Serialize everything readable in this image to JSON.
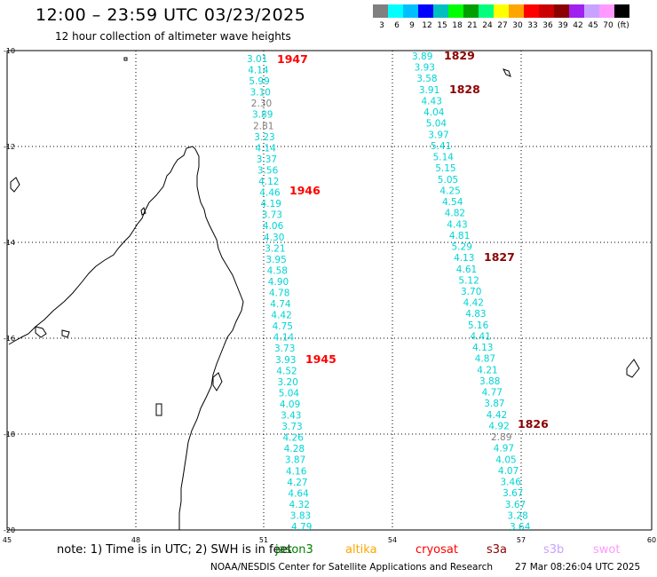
{
  "title": "12:00 – 23:59 UTC 03/23/2025",
  "subtitle": "12 hour collection of altimeter wave heights",
  "legend": {
    "labels": [
      "3",
      "6",
      "9",
      "12",
      "15",
      "18",
      "21",
      "24",
      "27",
      "30",
      "33",
      "36",
      "39",
      "42",
      "45",
      "70",
      "(ft)"
    ],
    "colors": [
      "#808080",
      "#00ffff",
      "#00bfff",
      "#0000ff",
      "#00bfbf",
      "#00ff00",
      "#009f00",
      "#00ff7f",
      "#ffff00",
      "#ffa500",
      "#ff0000",
      "#cc0000",
      "#8b0000",
      "#a020f0",
      "#c8a2ff",
      "#ff99ff",
      "#000000"
    ]
  },
  "axes": {
    "lon_ticks": [
      "45",
      "48",
      "51",
      "54",
      "57",
      "60"
    ],
    "lat_ticks": [
      "-10",
      "-12",
      "-14",
      "-16",
      "-18",
      "-20"
    ]
  },
  "tracks": {
    "west_times": [
      {
        "label": "1947",
        "color": "#ff0000"
      },
      {
        "label": "1946",
        "color": "#ff0000"
      },
      {
        "label": "1945",
        "color": "#ff0000"
      }
    ],
    "east_times": [
      {
        "label": "1829",
        "color": "#8b0000"
      },
      {
        "label": "1828",
        "color": "#8b0000"
      },
      {
        "label": "1827",
        "color": "#8b0000"
      },
      {
        "label": "1826",
        "color": "#8b0000"
      }
    ],
    "west_values": [
      "3.01",
      "4.14",
      "5.99",
      "3.10",
      "2.30",
      "3.89",
      "2.81",
      "3.23",
      "4.14",
      "3.37",
      "3.56",
      "4.12",
      "4.46",
      "4.19",
      "3.73",
      "4.06",
      "4.30",
      "3.21",
      "3.95",
      "4.58",
      "4.90",
      "4.78",
      "4.74",
      "4.42",
      "4.75",
      "4.14",
      "3.73",
      "3.93",
      "4.52",
      "3.20",
      "5.04",
      "4.09",
      "3.43",
      "3.73",
      "4.26",
      "4.28",
      "3.87",
      "4.16",
      "4.27",
      "4.64",
      "4.32",
      "3.83",
      "4.79"
    ],
    "east_values": [
      "3.89",
      "3.93",
      "3.58",
      "3.91",
      "4.43",
      "4.04",
      "5.04",
      "3.97",
      "5.41",
      "5.14",
      "5.15",
      "5.05",
      "4.25",
      "4.54",
      "4.82",
      "4.43",
      "4.81",
      "5.29",
      "4.13",
      "4.61",
      "5.12",
      "3.70",
      "4.42",
      "4.83",
      "5.16",
      "4.41",
      "4.13",
      "4.87",
      "4.21",
      "3.88",
      "4.77",
      "3.87",
      "4.42",
      "4.92",
      "2.89",
      "4.97",
      "4.05",
      "4.07",
      "3.46",
      "3.67",
      "3.67",
      "3.28",
      "3.64"
    ]
  },
  "note": {
    "text": "note:  1) Time is in UTC; 2) SWH is in feet",
    "sats": [
      {
        "name": "jason3",
        "color": "#008000"
      },
      {
        "name": "altika",
        "color": "#ffa500"
      },
      {
        "name": "cryosat",
        "color": "#ff0000"
      },
      {
        "name": "s3a",
        "color": "#8b0000"
      },
      {
        "name": "s3b",
        "color": "#c8a2ff"
      },
      {
        "name": "swot",
        "color": "#ff99ff"
      }
    ]
  },
  "footer": {
    "credit": "NOAA/NESDIS Center for Satellite Applications and Research",
    "timestamp": "27 Mar 08:26:04 UTC 2025"
  }
}
